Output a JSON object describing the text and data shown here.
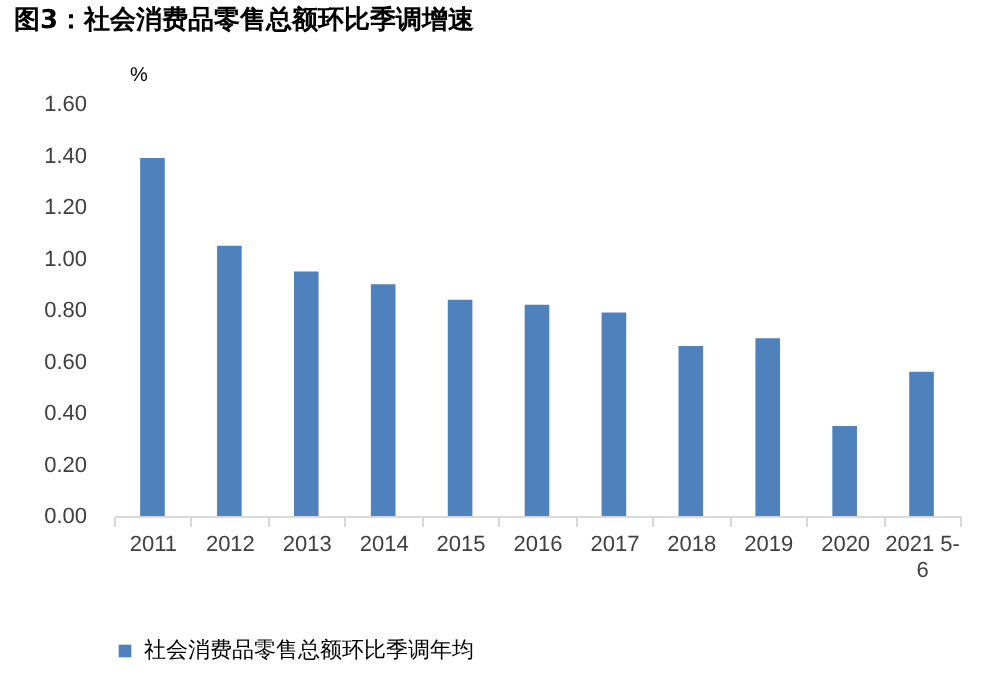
{
  "chart_data": {
    "type": "bar",
    "title": "图3：社会消费品零售总额环比季调增速",
    "ylabel": "%",
    "categories": [
      "2011",
      "2012",
      "2013",
      "2014",
      "2015",
      "2016",
      "2017",
      "2018",
      "2019",
      "2020",
      "2021 5-6"
    ],
    "series": [
      {
        "name": "社会消费品零售总额环比季调年均",
        "color": "#4f81bd",
        "values": [
          1.39,
          1.05,
          0.95,
          0.9,
          0.84,
          0.82,
          0.79,
          0.66,
          0.69,
          0.35,
          0.56
        ]
      }
    ],
    "ylim": [
      0,
      1.6
    ],
    "yticks": [
      {
        "value": 0,
        "label": "0.00"
      },
      {
        "value": 0.2,
        "label": "0.20"
      },
      {
        "value": 0.4,
        "label": "0.40"
      },
      {
        "value": 0.6,
        "label": "0.60"
      },
      {
        "value": 0.8,
        "label": "0.80"
      },
      {
        "value": 1.0,
        "label": "1.00"
      },
      {
        "value": 1.2,
        "label": "1.20"
      },
      {
        "value": 1.4,
        "label": "1.40"
      },
      {
        "value": 1.6,
        "label": "1.60"
      }
    ],
    "grid": false,
    "legend": "bottom"
  }
}
